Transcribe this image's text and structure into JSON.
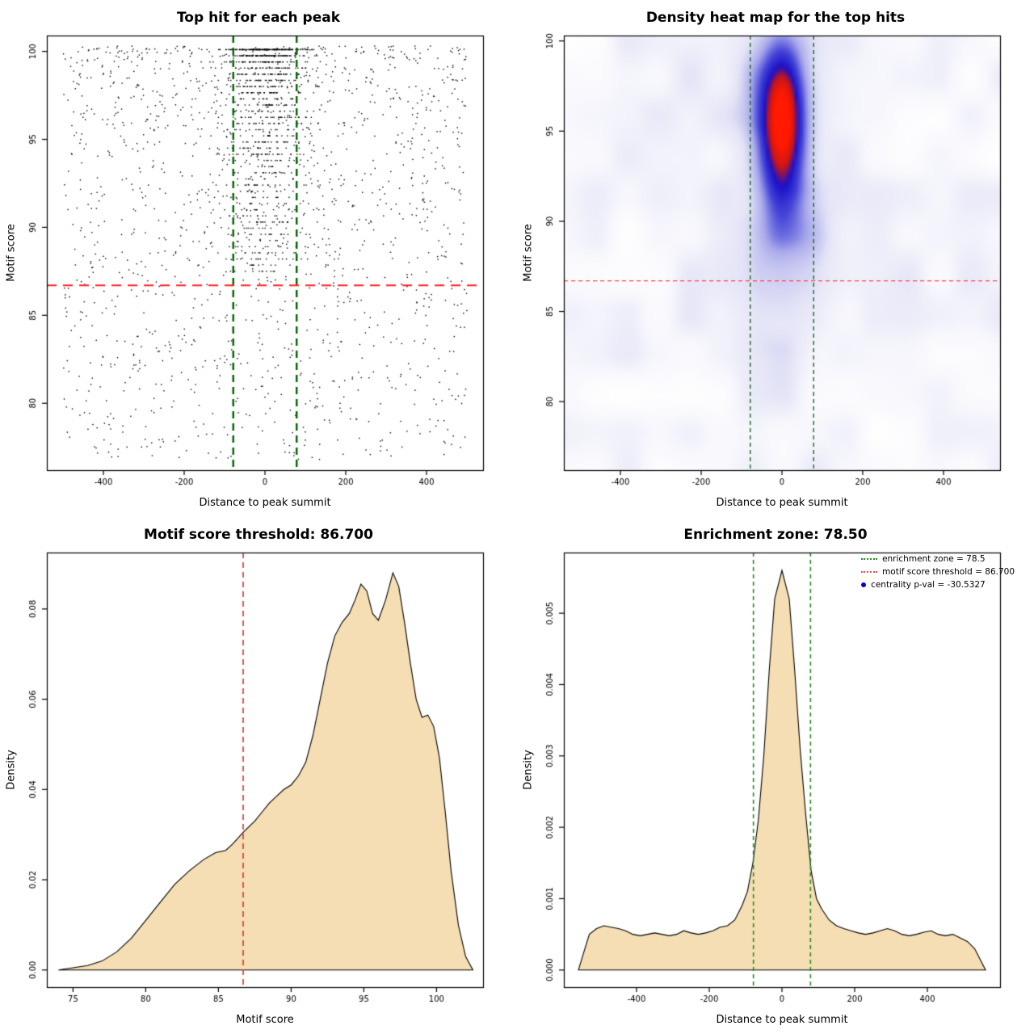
{
  "page": {
    "background": "#ffffff"
  },
  "chart_data": [
    {
      "id": "scatter",
      "type": "scatter",
      "title": "Top hit for each peak",
      "xlabel": "Distance to peak summit",
      "ylabel": "Motif score",
      "xlim": [
        -540,
        540
      ],
      "ylim": [
        76.2,
        100.9
      ],
      "xticks": [
        -400,
        -200,
        0,
        200,
        400
      ],
      "yticks": [
        80,
        85,
        90,
        95,
        100
      ],
      "point_color": "#000000",
      "point_size": 1.4,
      "points_model": {
        "seed": 42,
        "n_background": 1500,
        "bg_x_min": -500,
        "bg_x_max": 500,
        "bg_y_top": 100.3,
        "bg_y_span": 23.5,
        "bg_y_pow": 1.45,
        "n_cluster": 1000,
        "cluster_sd_x": 55,
        "cluster_y_top": 100.2,
        "cluster_y_span": 13,
        "cluster_y_pow": 2.2,
        "band_step": 0.35
      },
      "vlines": [
        {
          "x": -78.5,
          "color": "#006400",
          "width": 2.4,
          "dash": [
            9,
            6
          ]
        },
        {
          "x": 78.5,
          "color": "#006400",
          "width": 2.4,
          "dash": [
            9,
            6
          ]
        }
      ],
      "hlines": [
        {
          "y": 86.7,
          "color": "#ff2222",
          "width": 2,
          "dash": [
            12,
            8
          ]
        }
      ]
    },
    {
      "id": "heatmap",
      "type": "heatmap",
      "title": "Density heat map for the top hits",
      "xlabel": "Distance to peak summit",
      "ylabel": "Motif score",
      "xlim": [
        -540,
        540
      ],
      "ylim": [
        76.2,
        100.3
      ],
      "xticks": [
        -400,
        -200,
        0,
        200,
        400
      ],
      "yticks": [
        80,
        85,
        90,
        95,
        100
      ],
      "model": {
        "seed": 7,
        "noise_nx": 15,
        "noise_ny": 12,
        "noise_amp": 0.22,
        "noise_pow": 1.7,
        "scale": 1.35,
        "blobs": [
          {
            "x": 0,
            "y": 95.8,
            "sx": 40,
            "sy": 3.0,
            "amp": 1.0
          },
          {
            "x": 0,
            "y": 92.0,
            "sx": 68,
            "sy": 5.5,
            "amp": 0.5
          },
          {
            "x": 0,
            "y": 98.8,
            "sx": 250,
            "sy": 2.6,
            "amp": 0.12
          },
          {
            "x": 0,
            "y": 86.0,
            "sx": 300,
            "sy": 4.0,
            "amp": 0.07
          }
        ]
      },
      "colormap": [
        [
          0,
          "#ffffff"
        ],
        [
          0.22,
          "#e4e4f7"
        ],
        [
          0.42,
          "#aaaaec"
        ],
        [
          0.6,
          "#4444d8"
        ],
        [
          0.76,
          "#1a10c8"
        ],
        [
          0.87,
          "#cc1616"
        ],
        [
          1,
          "#ff1a00"
        ]
      ],
      "vlines": [
        {
          "x": -78.5,
          "color": "#1a6b1a",
          "width": 1.4,
          "dash": [
            5,
            4
          ]
        },
        {
          "x": 78.5,
          "color": "#1a6b1a",
          "width": 1.4,
          "dash": [
            5,
            4
          ]
        }
      ],
      "hlines": [
        {
          "y": 86.7,
          "color": "#ff4444",
          "width": 1.3,
          "dash": [
            5,
            4
          ]
        }
      ]
    },
    {
      "id": "score-density",
      "type": "density",
      "title": "Motif score threshold: 86.700",
      "xlabel": "Motif score",
      "ylabel": "Density",
      "xlim": [
        73.2,
        103.2
      ],
      "ylim": [
        -0.0038,
        0.0925
      ],
      "xticks": [
        75,
        80,
        85,
        90,
        95,
        100
      ],
      "yticks": [
        0,
        0.02,
        0.04,
        0.06,
        0.08
      ],
      "ytick_labels": [
        "0.00",
        "0.02",
        "0.04",
        "0.06",
        "0.08"
      ],
      "fill": "#f5deb3",
      "line": "#000000",
      "curve": {
        "x": [
          74,
          75,
          76,
          77,
          78,
          79,
          80,
          81,
          82,
          83,
          84,
          84.8,
          85.5,
          86,
          86.7,
          87.5,
          88,
          88.5,
          89,
          89.5,
          90,
          90.5,
          91,
          91.5,
          92,
          92.5,
          93,
          93.5,
          94,
          94.4,
          94.8,
          95.2,
          95.6,
          96,
          96.5,
          97,
          97.4,
          97.8,
          98.2,
          98.6,
          99,
          99.4,
          99.8,
          100.2,
          100.6,
          101,
          101.5,
          102,
          102.5
        ],
        "y": [
          0,
          0.0005,
          0.001,
          0.002,
          0.004,
          0.007,
          0.011,
          0.015,
          0.019,
          0.022,
          0.0245,
          0.026,
          0.0265,
          0.028,
          0.0305,
          0.033,
          0.035,
          0.037,
          0.0385,
          0.04,
          0.041,
          0.043,
          0.046,
          0.052,
          0.06,
          0.068,
          0.074,
          0.077,
          0.079,
          0.082,
          0.0855,
          0.084,
          0.079,
          0.0775,
          0.082,
          0.088,
          0.085,
          0.077,
          0.068,
          0.06,
          0.056,
          0.0565,
          0.054,
          0.047,
          0.035,
          0.022,
          0.01,
          0.003,
          0
        ]
      },
      "vlines": [
        {
          "x": 86.7,
          "color": "#d04040",
          "width": 1.7,
          "dash": [
            7,
            5
          ]
        }
      ]
    },
    {
      "id": "distance-density",
      "type": "density",
      "title": "Enrichment zone: 78.50",
      "xlabel": "Distance to peak summit",
      "ylabel": "Density",
      "xlim": [
        -600,
        600
      ],
      "ylim": [
        -0.00024,
        0.00585
      ],
      "xticks": [
        -400,
        -200,
        0,
        200,
        400
      ],
      "yticks": [
        0,
        0.001,
        0.002,
        0.003,
        0.004,
        0.005
      ],
      "ytick_labels": [
        "0.000",
        "0.001",
        "0.002",
        "0.003",
        "0.004",
        "0.005"
      ],
      "fill": "#f5deb3",
      "line": "#000000",
      "curve": {
        "x": [
          -560,
          -545,
          -530,
          -510,
          -490,
          -470,
          -450,
          -430,
          -410,
          -390,
          -370,
          -350,
          -330,
          -310,
          -290,
          -270,
          -250,
          -230,
          -210,
          -190,
          -170,
          -150,
          -130,
          -110,
          -95,
          -80,
          -65,
          -50,
          -35,
          -20,
          0,
          20,
          35,
          50,
          65,
          80,
          95,
          110,
          130,
          150,
          170,
          190,
          210,
          230,
          250,
          270,
          290,
          310,
          330,
          350,
          370,
          390,
          410,
          430,
          450,
          470,
          490,
          510,
          530,
          545,
          560
        ],
        "y": [
          0,
          0.00025,
          0.0005,
          0.00058,
          0.00062,
          0.0006,
          0.00058,
          0.00055,
          0.0005,
          0.00048,
          0.0005,
          0.00052,
          0.0005,
          0.00048,
          0.0005,
          0.00055,
          0.00052,
          0.0005,
          0.00052,
          0.00055,
          0.0006,
          0.00062,
          0.0007,
          0.0009,
          0.0011,
          0.0015,
          0.0021,
          0.003,
          0.0042,
          0.0052,
          0.0056,
          0.0052,
          0.0042,
          0.0031,
          0.0022,
          0.0014,
          0.001,
          0.00085,
          0.0007,
          0.00062,
          0.00058,
          0.00055,
          0.00052,
          0.0005,
          0.00052,
          0.00055,
          0.00058,
          0.00055,
          0.0005,
          0.00048,
          0.0005,
          0.00053,
          0.00055,
          0.0005,
          0.00048,
          0.0005,
          0.00045,
          0.0004,
          0.0003,
          0.00015,
          0
        ]
      },
      "vlines": [
        {
          "x": -78.5,
          "color": "#228b22",
          "width": 1.6,
          "dash": [
            5,
            4
          ]
        },
        {
          "x": 78.5,
          "color": "#228b22",
          "width": 1.6,
          "dash": [
            5,
            4
          ]
        }
      ],
      "legend": {
        "items": [
          {
            "label": "enrichment zone = 78.5",
            "marker": "dotted-line",
            "color": "#228b22"
          },
          {
            "label": "motif score threshold = 86.700",
            "marker": "dotted-line",
            "color": "#e05555"
          },
          {
            "label": "centrality p-val = -30.5327",
            "marker": "dot",
            "color": "#0000dd"
          }
        ]
      }
    }
  ]
}
